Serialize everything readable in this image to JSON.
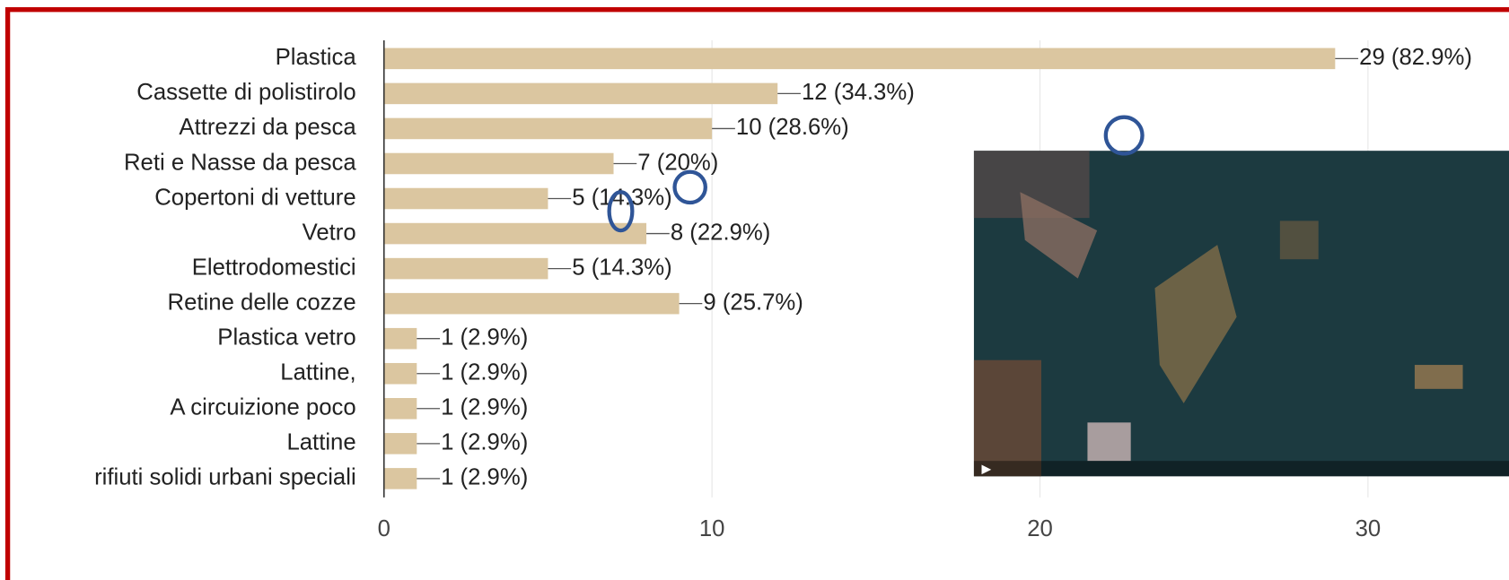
{
  "chart_data": {
    "type": "bar",
    "orientation": "horizontal",
    "categories": [
      "Plastica",
      "Cassette di polistirolo",
      "Attrezzi da pesca",
      "Reti e Nasse da pesca",
      "Copertoni di vetture",
      "Vetro",
      "Elettrodomestici",
      "Retine delle cozze",
      "Plastica vetro",
      "Lattine,",
      "A circuizione poco",
      "Lattine",
      "rifiuti solidi urbani speciali"
    ],
    "values": [
      29,
      12,
      10,
      7,
      5,
      8,
      5,
      9,
      1,
      1,
      1,
      1,
      1
    ],
    "value_labels": [
      "29 (82.9%)",
      "12 (34.3%)",
      "10 (28.6%)",
      "7 (20%)",
      "5 (14.3%)",
      "8 (22.9%)",
      "5 (14.3%)",
      "9 (25.7%)",
      "1 (2.9%)",
      "1 (2.9%)",
      "1 (2.9%)",
      "1 (2.9%)",
      "1 (2.9%)"
    ],
    "color": "#dbc6a0",
    "xlim": [
      0,
      34.3
    ],
    "xticks": [
      0,
      10,
      20,
      30
    ],
    "grid": true
  }
}
